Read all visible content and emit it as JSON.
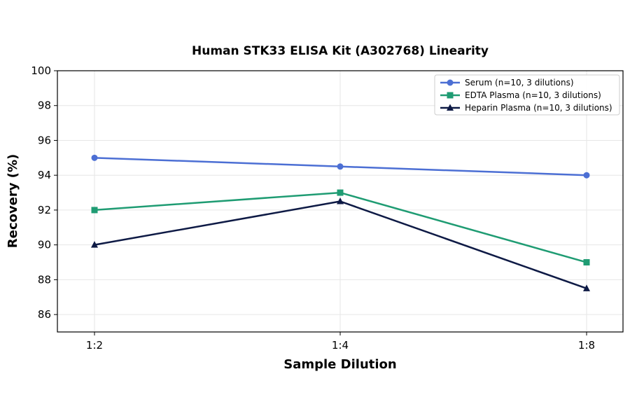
{
  "chart_data": {
    "type": "line",
    "title": "Human STK33 ELISA Kit (A302768) Linearity",
    "xlabel": "Sample Dilution",
    "ylabel": "Recovery (%)",
    "categories": [
      "1:2",
      "1:4",
      "1:8"
    ],
    "ylim": [
      85,
      100
    ],
    "yticks": [
      86,
      88,
      90,
      92,
      94,
      96,
      98,
      100
    ],
    "grid": true,
    "legend_position": "top-right",
    "series": [
      {
        "name": "Serum (n=10, 3 dilutions)",
        "values": [
          95,
          94.5,
          94
        ],
        "color": "#4c6fd4",
        "marker": "circle"
      },
      {
        "name": "EDTA Plasma (n=10, 3 dilutions)",
        "values": [
          92,
          93,
          89
        ],
        "color": "#1f9c73",
        "marker": "square"
      },
      {
        "name": "Heparin Plasma (n=10, 3 dilutions)",
        "values": [
          90,
          92.5,
          87.5
        ],
        "color": "#0e1a45",
        "marker": "triangle"
      }
    ]
  }
}
